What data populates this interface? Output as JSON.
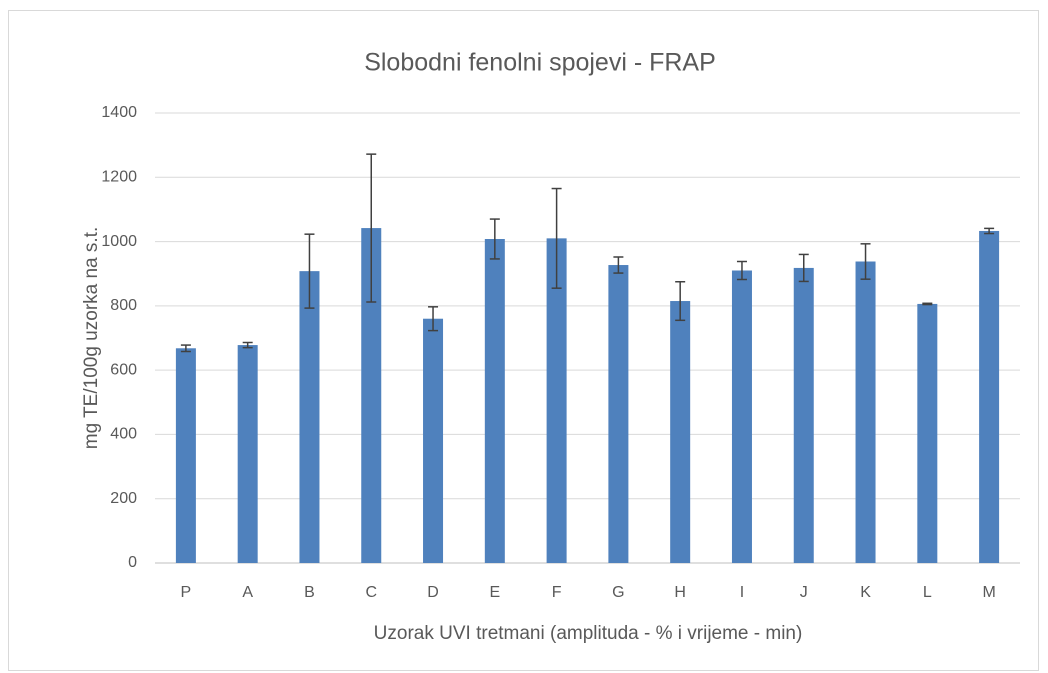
{
  "chart_data": {
    "type": "bar",
    "title": "Slobodni fenolni spojevi - FRAP",
    "x_label": "Uzorak UVI tretmani (amplituda - % i vrijeme - min)",
    "y_label": "mg TE/100g uzorka na s.t.",
    "categories": [
      "P",
      "A",
      "B",
      "C",
      "D",
      "E",
      "F",
      "G",
      "H",
      "I",
      "J",
      "K",
      "L",
      "M"
    ],
    "values": [
      668,
      678,
      908,
      1042,
      760,
      1008,
      1010,
      927,
      815,
      910,
      918,
      938,
      806,
      1033
    ],
    "errors": [
      10,
      8,
      115,
      230,
      37,
      62,
      155,
      25,
      60,
      28,
      42,
      55,
      2,
      8
    ],
    "color": "#4f81bd",
    "ylim": [
      0,
      1400
    ],
    "yticks": [
      0,
      200,
      400,
      600,
      800,
      1000,
      1200,
      1400
    ],
    "grid": true
  }
}
